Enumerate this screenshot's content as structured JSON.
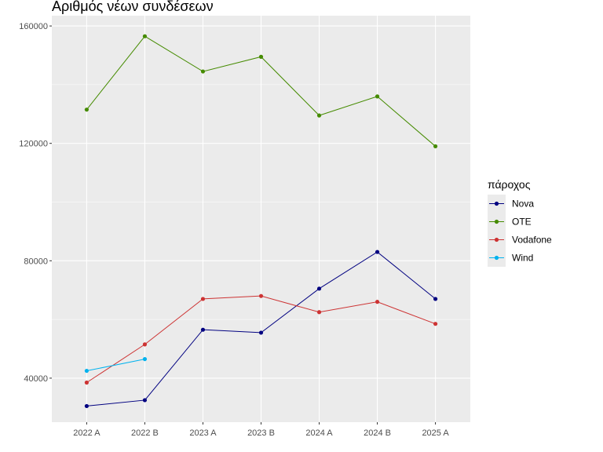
{
  "chart_data": {
    "type": "line",
    "title": "Αριθμός νέων συνδέσεων",
    "xlabel": "",
    "ylabel": "",
    "categories": [
      "2022 A",
      "2022 B",
      "2023 A",
      "2023 B",
      "2024 A",
      "2024 B",
      "2025 A"
    ],
    "ylim": [
      25000,
      163500
    ],
    "yticks": [
      40000,
      80000,
      120000,
      160000
    ],
    "grid": true,
    "legend": {
      "title": "πάροχος",
      "position": "right"
    },
    "series": [
      {
        "name": "Nova",
        "color": "#000080",
        "values": [
          30500,
          32500,
          56500,
          55500,
          70500,
          83000,
          67000
        ]
      },
      {
        "name": "OTE",
        "color": "#458B00",
        "values": [
          131500,
          156500,
          144500,
          149500,
          129500,
          136000,
          119000
        ]
      },
      {
        "name": "Vodafone",
        "color": "#CD3333",
        "values": [
          38500,
          51500,
          67000,
          68000,
          62500,
          66000,
          58500
        ]
      },
      {
        "name": "Wind",
        "color": "#00B2EE",
        "values": [
          42500,
          46500,
          null,
          null,
          null,
          null,
          null
        ]
      }
    ]
  }
}
